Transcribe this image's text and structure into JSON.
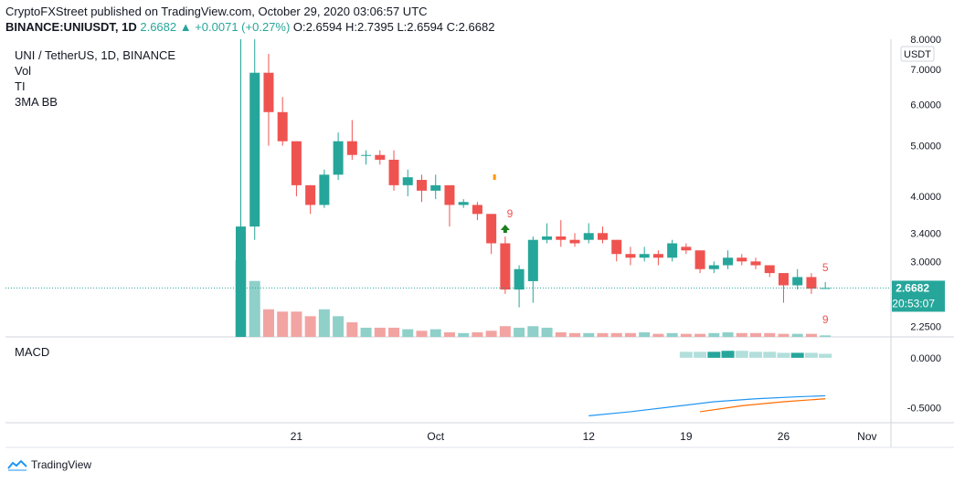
{
  "header": {
    "published_line": "CryptoFXStreet published on TradingView.com, October 29, 2020 03:06:57 UTC",
    "symbol_line": "BINANCE:UNIUSDT, 1D",
    "change": "2.6682 ▲ +0.0071 (+0.27%)",
    "ohlc": {
      "o": "O:2.6594",
      "h": "H:2.7395",
      "l": "L:2.6594",
      "c": "C:2.6682"
    }
  },
  "legend": {
    "title": "UNI / TetherUS, 1D, BINANCE",
    "indicators": [
      "Vol",
      "TI",
      "3MA BB"
    ],
    "macd_label": "MACD"
  },
  "price_scale": {
    "unit": "USDT",
    "last_price": "2.6682",
    "countdown": "20:53:07"
  },
  "footer": {
    "brand": "TradingView"
  },
  "colors": {
    "up": "#26a69a",
    "down": "#ef5350",
    "up_vol": "#8fd0c9",
    "down_vol": "#f2a4a2",
    "macd_line": "#2196f3",
    "signal_line": "#ff6d00"
  },
  "chart_data": {
    "type": "candlestick",
    "title": "UNI / TetherUS, 1D, BINANCE",
    "y_scale": "log",
    "ylim": [
      2.15,
      8.0
    ],
    "y_ticks": [
      "8.0000",
      "7.0000",
      "6.0000",
      "5.0000",
      "4.0000",
      "3.4000",
      "3.0000",
      "2.6682",
      "2.2500"
    ],
    "x_ticks": [
      "21",
      "Oct",
      "12",
      "19",
      "26",
      "Nov"
    ],
    "candles": [
      {
        "date": "2020-09-17",
        "o": 2.15,
        "h": 8.0,
        "l": 2.15,
        "c": 3.5
      },
      {
        "date": "2020-09-18",
        "o": 3.5,
        "h": 8.0,
        "l": 3.3,
        "c": 6.9
      },
      {
        "date": "2020-09-19",
        "o": 6.9,
        "h": 7.5,
        "l": 5.0,
        "c": 5.8
      },
      {
        "date": "2020-09-20",
        "o": 5.8,
        "h": 6.2,
        "l": 5.0,
        "c": 5.1
      },
      {
        "date": "2020-09-21",
        "o": 5.1,
        "h": 5.1,
        "l": 4.0,
        "c": 4.2
      },
      {
        "date": "2020-09-22",
        "o": 4.2,
        "h": 4.2,
        "l": 3.7,
        "c": 3.85
      },
      {
        "date": "2020-09-23",
        "o": 3.85,
        "h": 4.5,
        "l": 3.8,
        "c": 4.4
      },
      {
        "date": "2020-09-24",
        "o": 4.4,
        "h": 5.3,
        "l": 4.3,
        "c": 5.1
      },
      {
        "date": "2020-09-25",
        "o": 5.1,
        "h": 5.6,
        "l": 4.7,
        "c": 4.8
      },
      {
        "date": "2020-09-26",
        "o": 4.8,
        "h": 4.9,
        "l": 4.6,
        "c": 4.8
      },
      {
        "date": "2020-09-27",
        "o": 4.8,
        "h": 4.9,
        "l": 4.6,
        "c": 4.7
      },
      {
        "date": "2020-09-28",
        "o": 4.7,
        "h": 4.9,
        "l": 4.1,
        "c": 4.2
      },
      {
        "date": "2020-09-29",
        "o": 4.2,
        "h": 4.5,
        "l": 4.0,
        "c": 4.35
      },
      {
        "date": "2020-09-30",
        "o": 4.3,
        "h": 4.4,
        "l": 3.9,
        "c": 4.1
      },
      {
        "date": "2020-10-01",
        "o": 4.1,
        "h": 4.4,
        "l": 3.95,
        "c": 4.2
      },
      {
        "date": "2020-10-02",
        "o": 4.2,
        "h": 4.2,
        "l": 3.5,
        "c": 3.85
      },
      {
        "date": "2020-10-03",
        "o": 3.85,
        "h": 3.95,
        "l": 3.8,
        "c": 3.9
      },
      {
        "date": "2020-10-04",
        "o": 3.85,
        "h": 3.9,
        "l": 3.6,
        "c": 3.7
      },
      {
        "date": "2020-10-05",
        "o": 3.7,
        "h": 3.7,
        "l": 3.1,
        "c": 3.25
      },
      {
        "date": "2020-10-06",
        "o": 3.25,
        "h": 3.35,
        "l": 2.6,
        "c": 2.65
      },
      {
        "date": "2020-10-07",
        "o": 2.65,
        "h": 2.95,
        "l": 2.45,
        "c": 2.9
      },
      {
        "date": "2020-10-08",
        "o": 2.75,
        "h": 3.35,
        "l": 2.5,
        "c": 3.3
      },
      {
        "date": "2020-10-09",
        "o": 3.3,
        "h": 3.55,
        "l": 3.25,
        "c": 3.35
      },
      {
        "date": "2020-10-10",
        "o": 3.35,
        "h": 3.6,
        "l": 3.2,
        "c": 3.3
      },
      {
        "date": "2020-10-11",
        "o": 3.3,
        "h": 3.4,
        "l": 3.2,
        "c": 3.25
      },
      {
        "date": "2020-10-12",
        "o": 3.3,
        "h": 3.55,
        "l": 3.25,
        "c": 3.4
      },
      {
        "date": "2020-10-13",
        "o": 3.4,
        "h": 3.5,
        "l": 3.25,
        "c": 3.3
      },
      {
        "date": "2020-10-14",
        "o": 3.3,
        "h": 3.3,
        "l": 3.0,
        "c": 3.1
      },
      {
        "date": "2020-10-15",
        "o": 3.1,
        "h": 3.2,
        "l": 2.95,
        "c": 3.05
      },
      {
        "date": "2020-10-16",
        "o": 3.05,
        "h": 3.2,
        "l": 3.0,
        "c": 3.1
      },
      {
        "date": "2020-10-17",
        "o": 3.1,
        "h": 3.15,
        "l": 2.95,
        "c": 3.05
      },
      {
        "date": "2020-10-18",
        "o": 3.05,
        "h": 3.3,
        "l": 3.0,
        "c": 3.25
      },
      {
        "date": "2020-10-19",
        "o": 3.2,
        "h": 3.25,
        "l": 3.1,
        "c": 3.15
      },
      {
        "date": "2020-10-20",
        "o": 3.15,
        "h": 3.15,
        "l": 2.85,
        "c": 2.9
      },
      {
        "date": "2020-10-21",
        "o": 2.9,
        "h": 3.0,
        "l": 2.85,
        "c": 2.95
      },
      {
        "date": "2020-10-22",
        "o": 2.95,
        "h": 3.15,
        "l": 2.9,
        "c": 3.05
      },
      {
        "date": "2020-10-23",
        "o": 3.05,
        "h": 3.1,
        "l": 2.95,
        "c": 3.0
      },
      {
        "date": "2020-10-24",
        "o": 3.0,
        "h": 3.05,
        "l": 2.9,
        "c": 2.95
      },
      {
        "date": "2020-10-25",
        "o": 2.95,
        "h": 2.95,
        "l": 2.8,
        "c": 2.85
      },
      {
        "date": "2020-10-26",
        "o": 2.85,
        "h": 2.85,
        "l": 2.5,
        "c": 2.7
      },
      {
        "date": "2020-10-27",
        "o": 2.7,
        "h": 2.9,
        "l": 2.65,
        "c": 2.8
      },
      {
        "date": "2020-10-28",
        "o": 2.8,
        "h": 2.85,
        "l": 2.6,
        "c": 2.66
      },
      {
        "date": "2020-10-29",
        "o": 2.6594,
        "h": 2.7395,
        "l": 2.6594,
        "c": 2.6682
      }
    ],
    "volume_relative": [
      1.0,
      0.73,
      0.36,
      0.33,
      0.33,
      0.27,
      0.36,
      0.27,
      0.19,
      0.12,
      0.12,
      0.12,
      0.1,
      0.08,
      0.1,
      0.06,
      0.05,
      0.06,
      0.08,
      0.14,
      0.12,
      0.14,
      0.12,
      0.06,
      0.05,
      0.05,
      0.05,
      0.05,
      0.05,
      0.06,
      0.04,
      0.05,
      0.04,
      0.04,
      0.05,
      0.06,
      0.05,
      0.05,
      0.05,
      0.04,
      0.04,
      0.04,
      0.02
    ],
    "annotations": [
      {
        "date": "2020-10-05",
        "label": "9",
        "color": "#ef5350"
      },
      {
        "date": "2020-10-28",
        "label": "5",
        "color": "#ef5350"
      },
      {
        "date": "2020-10-28",
        "label": "9",
        "color": "#ef5350"
      }
    ],
    "macd": {
      "y_ticks": [
        "0.0000",
        "-0.5000"
      ],
      "ylim": [
        -0.65,
        0.2
      ],
      "macd_line": {
        "dates": [
          "2020-10-12",
          "2020-10-15",
          "2020-10-18",
          "2020-10-21",
          "2020-10-24",
          "2020-10-27",
          "2020-10-29"
        ],
        "values": [
          -0.58,
          -0.54,
          -0.49,
          -0.44,
          -0.41,
          -0.39,
          -0.38
        ]
      },
      "signal_line": {
        "dates": [
          "2020-10-20",
          "2020-10-23",
          "2020-10-26",
          "2020-10-29"
        ],
        "values": [
          -0.54,
          -0.48,
          -0.44,
          -0.41
        ]
      },
      "histogram_dates": [
        "2020-10-19",
        "2020-10-20",
        "2020-10-21",
        "2020-10-22",
        "2020-10-23",
        "2020-10-24",
        "2020-10-25",
        "2020-10-26",
        "2020-10-27",
        "2020-10-28",
        "2020-10-29"
      ],
      "histogram_values": [
        0.06,
        0.06,
        0.06,
        0.07,
        0.07,
        0.06,
        0.06,
        0.05,
        0.05,
        0.05,
        0.04
      ]
    }
  }
}
